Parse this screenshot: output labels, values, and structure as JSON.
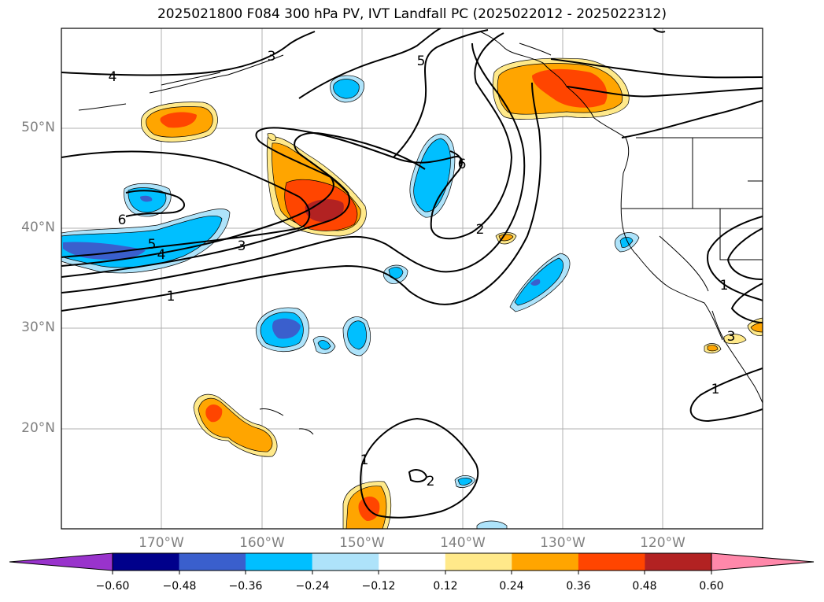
{
  "title": "2025021800 F084 300 hPa PV, IVT Landfall PC (2025022012 - 2025022312)",
  "lat_labels": [
    "50°N",
    "40°N",
    "30°N",
    "20°N"
  ],
  "lon_labels": [
    "170°W",
    "160°W",
    "150°W",
    "140°W",
    "130°W",
    "120°W"
  ],
  "colorbar": {
    "ticks": [
      "−0.60",
      "−0.48",
      "−0.36",
      "−0.24",
      "−0.12",
      "0.12",
      "0.24",
      "0.36",
      "0.48",
      "0.60"
    ],
    "colors": [
      "#9933cc",
      "#00008b",
      "#3a5fcd",
      "#00bfff",
      "#aee3fa",
      "#ffffff",
      "#ffe98a",
      "#ffa500",
      "#ff4500",
      "#b22222",
      "#ff88aa"
    ]
  },
  "contour_labels": [
    "1",
    "1",
    "1",
    "1",
    "2",
    "2",
    "3",
    "3",
    "3",
    "4",
    "4",
    "5",
    "5",
    "6",
    "6"
  ]
}
